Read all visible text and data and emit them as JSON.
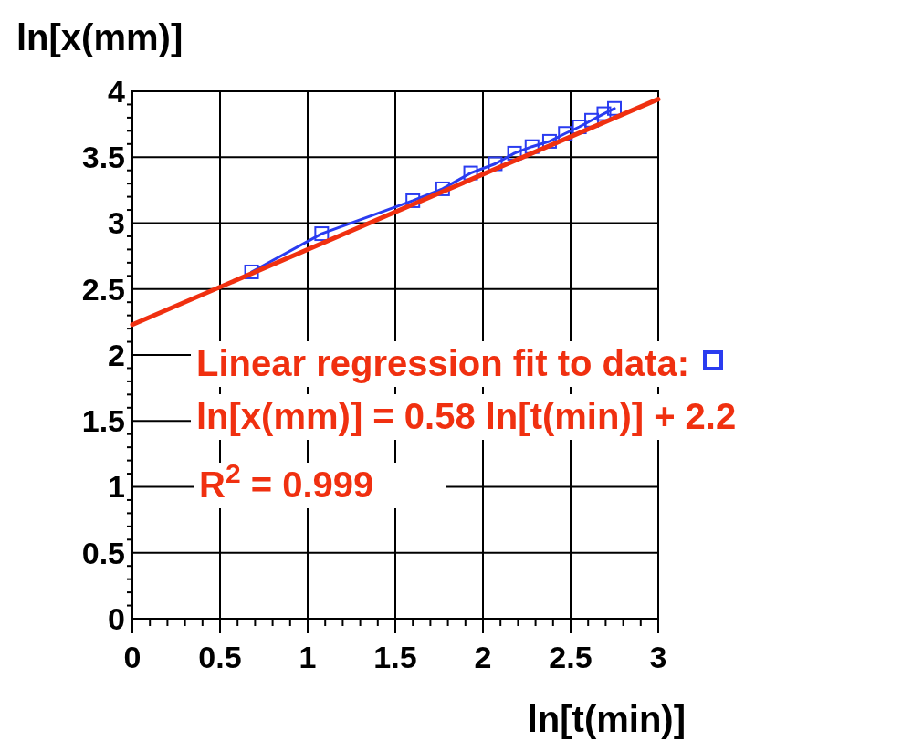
{
  "chart_data": {
    "type": "line",
    "xlabel": "ln[t(min)]",
    "ylabel": "ln[x(mm)]",
    "xlim": [
      0,
      3
    ],
    "ylim": [
      0,
      4
    ],
    "xticks": [
      0,
      {
        "value": 0.1,
        "label": null
      },
      {
        "value": 0.2,
        "label": null
      },
      {
        "value": 0.3,
        "label": null
      },
      {
        "value": 0.4,
        "label": null
      },
      0.5,
      {
        "value": 0.6,
        "label": null
      },
      {
        "value": 0.7,
        "label": null
      },
      {
        "value": 0.8,
        "label": null
      },
      {
        "value": 0.9,
        "label": null
      },
      1,
      {
        "value": 1.1,
        "label": null
      },
      {
        "value": 1.2,
        "label": null
      },
      {
        "value": 1.3,
        "label": null
      },
      {
        "value": 1.4,
        "label": null
      },
      1.5,
      {
        "value": 1.6,
        "label": null
      },
      {
        "value": 1.7,
        "label": null
      },
      {
        "value": 1.8,
        "label": null
      },
      {
        "value": 1.9,
        "label": null
      },
      2,
      {
        "value": 2.1,
        "label": null
      },
      {
        "value": 2.2,
        "label": null
      },
      {
        "value": 2.3,
        "label": null
      },
      {
        "value": 2.4,
        "label": null
      },
      2.5,
      {
        "value": 2.6,
        "label": null
      },
      {
        "value": 2.7,
        "label": null
      },
      {
        "value": 2.8,
        "label": null
      },
      {
        "value": 2.9,
        "label": null
      },
      3
    ],
    "yticks": [
      0,
      {
        "value": 0.1,
        "label": null
      },
      {
        "value": 0.2,
        "label": null
      },
      {
        "value": 0.3,
        "label": null
      },
      {
        "value": 0.4,
        "label": null
      },
      0.5,
      {
        "value": 0.6,
        "label": null
      },
      {
        "value": 0.7,
        "label": null
      },
      {
        "value": 0.8,
        "label": null
      },
      {
        "value": 0.9,
        "label": null
      },
      1,
      {
        "value": 1.1,
        "label": null
      },
      {
        "value": 1.2,
        "label": null
      },
      {
        "value": 1.3,
        "label": null
      },
      {
        "value": 1.4,
        "label": null
      },
      1.5,
      {
        "value": 1.6,
        "label": null
      },
      {
        "value": 1.7,
        "label": null
      },
      {
        "value": 1.8,
        "label": null
      },
      {
        "value": 1.9,
        "label": null
      },
      2,
      {
        "value": 2.1,
        "label": null
      },
      {
        "value": 2.2,
        "label": null
      },
      {
        "value": 2.3,
        "label": null
      },
      {
        "value": 2.4,
        "label": null
      },
      2.5,
      {
        "value": 2.6,
        "label": null
      },
      {
        "value": 2.7,
        "label": null
      },
      {
        "value": 2.8,
        "label": null
      },
      {
        "value": 2.9,
        "label": null
      },
      3,
      {
        "value": 3.1,
        "label": null
      },
      {
        "value": 3.2,
        "label": null
      },
      {
        "value": 3.3,
        "label": null
      },
      {
        "value": 3.4,
        "label": null
      },
      3.5,
      {
        "value": 3.6,
        "label": null
      },
      {
        "value": 3.7,
        "label": null
      },
      {
        "value": 3.8,
        "label": null
      },
      {
        "value": 3.9,
        "label": null
      },
      4
    ],
    "grid": true,
    "series": [
      {
        "marker": "square",
        "color": "#2a3cf0",
        "x": [
          0.68,
          1.08,
          1.6,
          1.77,
          1.93,
          2.07,
          2.18,
          2.28,
          2.38,
          2.47,
          2.55,
          2.62,
          2.69,
          2.75
        ],
        "values": [
          2.63,
          2.92,
          3.17,
          3.26,
          3.38,
          3.45,
          3.53,
          3.58,
          3.62,
          3.68,
          3.73,
          3.78,
          3.83,
          3.87
        ]
      },
      {
        "marker": "none",
        "color": "#f03010",
        "x": [
          0,
          3
        ],
        "values": [
          2.23,
          3.94
        ]
      }
    ],
    "annotations": [
      "Linear regression fit to data:",
      "ln[x(mm)] = 0.58 ln[t(min)] + 2.2",
      "R$^{2}$ = 0.999"
    ]
  }
}
